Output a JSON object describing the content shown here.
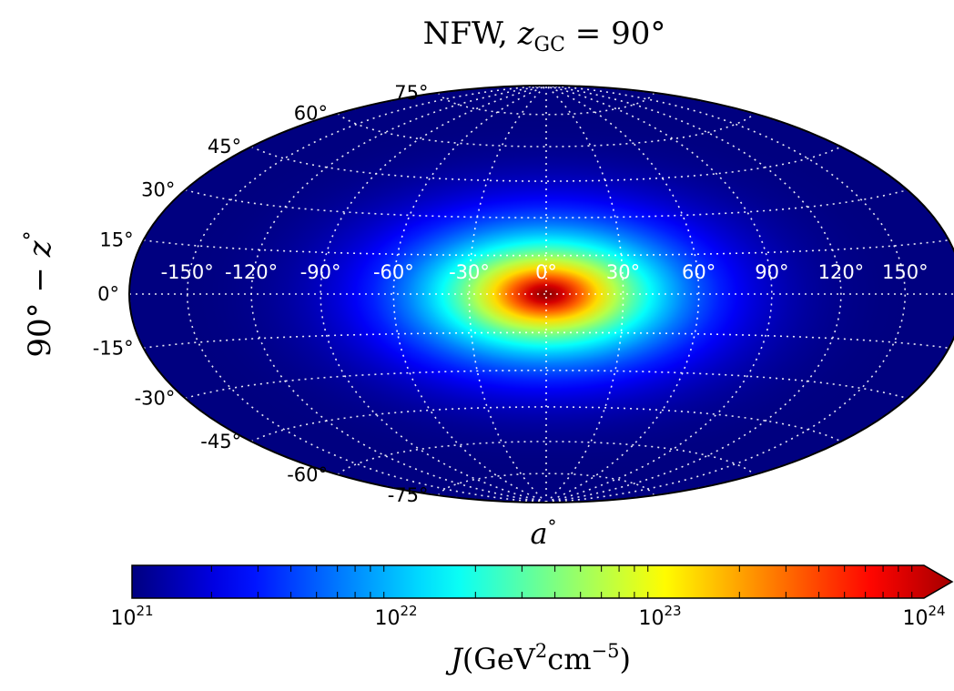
{
  "chart_data": {
    "type": "heatmap",
    "projection": "hammer-aitoff",
    "title": "NFW, z_GC = 90°",
    "title_parts": {
      "prefix": "NFW, ",
      "var": "z",
      "sub": "GC",
      "suffix": " = 90°"
    },
    "xlabel": "a°",
    "xlabel_parts": {
      "var": "a",
      "sup": "°"
    },
    "ylabel": "90° − z°",
    "ylabel_parts": {
      "text": "90° − ",
      "var": "z",
      "sup": "°"
    },
    "longitude_ticks": [
      -150,
      -120,
      -90,
      -60,
      -30,
      0,
      30,
      60,
      90,
      120,
      150
    ],
    "latitude_ticks": [
      75,
      60,
      45,
      30,
      15,
      0,
      -15,
      -30,
      -45,
      -60,
      -75
    ],
    "longitude_tick_labels": [
      "-150°",
      "-120°",
      "-90°",
      "-60°",
      "-30°",
      "0°",
      "30°",
      "60°",
      "90°",
      "120°",
      "150°"
    ],
    "latitude_tick_labels": [
      "75°",
      "60°",
      "45°",
      "30°",
      "15°",
      "0°",
      "-15°",
      "-30°",
      "-45°",
      "-60°",
      "-75°"
    ],
    "grid": true,
    "grid_style": "dotted white",
    "peak": {
      "lon": 0,
      "lat": 0,
      "J_log10": 24.2
    },
    "J_log10_at_edge": 21.0,
    "colormap": "jet",
    "colorbar": {
      "orientation": "horizontal",
      "scale": "log",
      "range": [
        1e+21,
        1e+24
      ],
      "extend": "max",
      "tick_labels": [
        {
          "base": "10",
          "exp": "21"
        },
        {
          "base": "10",
          "exp": "22"
        },
        {
          "base": "10",
          "exp": "23"
        },
        {
          "base": "10",
          "exp": "24"
        }
      ],
      "label": "J(GeV²cm⁻⁵)",
      "label_parts": {
        "var": "J",
        "open": "(GeV",
        "sup1": "2",
        "mid": "cm",
        "sup2": "−5",
        "close": ")"
      }
    }
  }
}
